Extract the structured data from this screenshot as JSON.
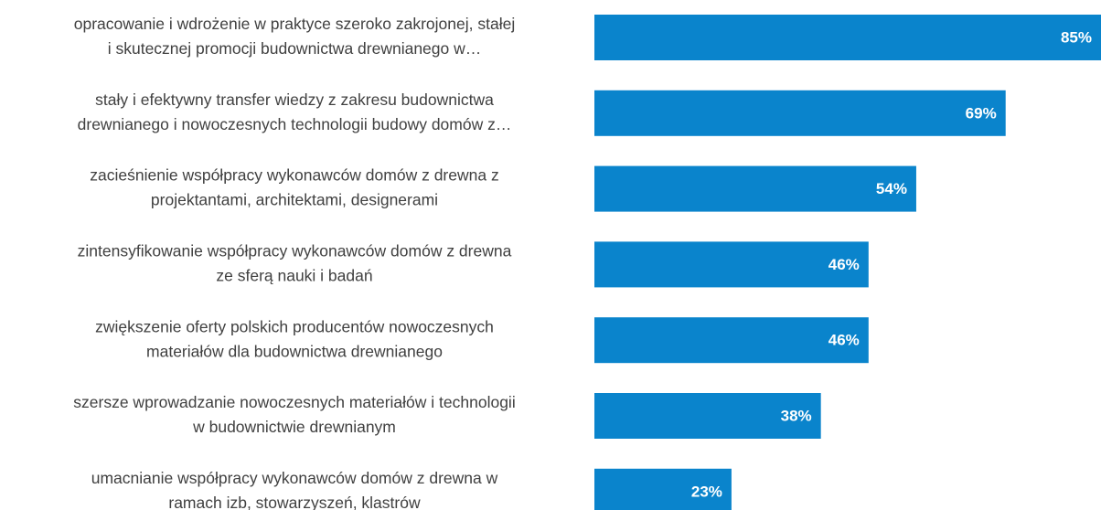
{
  "chart_data": {
    "type": "bar",
    "orientation": "horizontal",
    "categories": [
      [
        "opracowanie i wdrożenie w praktyce szeroko zakrojonej, stałej",
        "i skutecznej promocji budownictwa drewnianego w…"
      ],
      [
        "stały i efektywny transfer wiedzy z zakresu budownictwa",
        "drewnianego i nowoczesnych technologii budowy domów z…"
      ],
      [
        "zacieśnienie współpracy wykonawców domów z drewna z",
        "projektantami, architektami, designerami"
      ],
      [
        "zintensyfikowanie współpracy wykonawców domów z drewna",
        "ze sferą nauki i badań"
      ],
      [
        "zwiększenie oferty polskich producentów nowoczesnych",
        "materiałów dla budownictwa drewnianego"
      ],
      [
        "szersze wprowadzanie nowoczesnych materiałów i technologii",
        "w budownictwie drewnianym"
      ],
      [
        "umacnianie współpracy wykonawców domów z drewna w",
        "ramach izb, stowarzyszeń, klastrów"
      ]
    ],
    "values": [
      85,
      69,
      54,
      46,
      46,
      38,
      23
    ],
    "value_labels": [
      "85%",
      "69%",
      "54%",
      "46%",
      "46%",
      "38%",
      "23%"
    ],
    "color": "#0a84cc",
    "xlim": [
      0,
      85
    ]
  }
}
